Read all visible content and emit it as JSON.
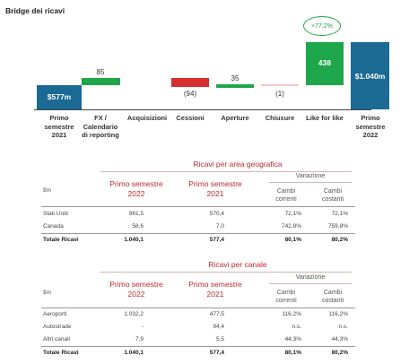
{
  "bridge": {
    "title": "Bridge dei ricavi",
    "badge": "+77,2%",
    "bars": [
      {
        "label": "$577m",
        "type": "total"
      },
      {
        "value_label": "85",
        "type": "increase"
      },
      {
        "value_label": "",
        "type": "none"
      },
      {
        "value_label": "(94)",
        "type": "decrease"
      },
      {
        "value_label": "35",
        "type": "increase"
      },
      {
        "value_label": "(1)",
        "type": "decrease"
      },
      {
        "label": "438",
        "type": "increase"
      },
      {
        "label": "$1.040m",
        "type": "total"
      }
    ],
    "categories": [
      "Primo\nsemestre\n2021",
      "FX /\nCalendario\ndi reporting",
      "Acquisizioni",
      "Cessioni",
      "Aperture",
      "Chiusure",
      "Like for like",
      "Primo\nsemestre\n2022"
    ],
    "colors": {
      "total": "#1a6a94",
      "increase": "#1ea64a",
      "decrease": "#d62e2e",
      "minor_decrease": "#f2c6c6"
    }
  },
  "chart_data": {
    "type": "bar",
    "categories": [
      "Primo semestre 2021",
      "FX / Calendario di reporting",
      "Acquisizioni",
      "Cessioni",
      "Aperture",
      "Chiusure",
      "Like for like",
      "Primo semestre 2022"
    ],
    "values": [
      577,
      85,
      0,
      -94,
      35,
      -1,
      438,
      1040
    ],
    "title": "Bridge dei ricavi",
    "xlabel": "",
    "ylabel": ""
  },
  "geo_table": {
    "title": "Ricavi per area geografica",
    "unit": "$m",
    "col1": "Primo semestre\n2022",
    "col2": "Primo semestre\n2021",
    "variation": "Variazione",
    "sub1": "Cambi\ncorrenti",
    "sub2": "Cambi\ncostanti",
    "rows": [
      {
        "label": "Stati Uniti",
        "c1": "981,5",
        "c2": "570,4",
        "c3": "72,1%",
        "c4": "72,1%"
      },
      {
        "label": "Canada",
        "c1": "58,6",
        "c2": "7,0",
        "c3": "742,8%",
        "c4": "759,8%"
      },
      {
        "label": "Totale Ricavi",
        "c1": "1.040,1",
        "c2": "577,4",
        "c3": "80,1%",
        "c4": "80,2%"
      }
    ]
  },
  "channel_table": {
    "title": "Ricavi per canale",
    "unit": "$m",
    "col1": "Primo semestre\n2022",
    "col2": "Primo semestre\n2021",
    "variation": "Variazione",
    "sub1": "Cambi\ncorrenti",
    "sub2": "Cambi\ncostanti",
    "rows": [
      {
        "label": "Aeroporti",
        "c1": "1.032,2",
        "c2": "477,5",
        "c3": "116,2%",
        "c4": "116,2%"
      },
      {
        "label": "Autostrade",
        "c1": "-",
        "c2": "94,4",
        "c3": "n.s.",
        "c4": "n.s."
      },
      {
        "label": "Altri canali",
        "c1": "7,9",
        "c2": "5,5",
        "c3": "44,3%",
        "c4": "44,3%"
      },
      {
        "label": "Totale Ricavi",
        "c1": "1.040,1",
        "c2": "577,4",
        "c3": "80,1%",
        "c4": "80,2%"
      }
    ]
  }
}
